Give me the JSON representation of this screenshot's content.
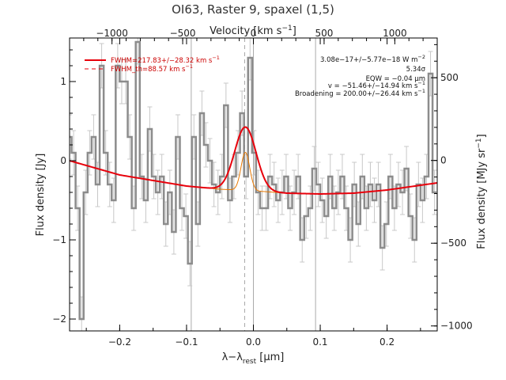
{
  "chart_data": {
    "type": "line",
    "title": "OI63, Raster 9, spaxel (1,5)",
    "xlabel": "λ−λ",
    "xlabel_sub": "rest",
    "xlabel_unit": " [μm]",
    "ylabel": "Flux density [Jy]",
    "ylabel_right": "Flux density [MJy sr",
    "ylabel_right_sup": "−1",
    "ylabel_right_end": "]",
    "xlabel_top": "Velocity [km s",
    "xlabel_top_sup": "−1",
    "xlabel_top_end": "]",
    "xlim": [
      -0.275,
      0.275
    ],
    "ylim": [
      -2.15,
      1.55
    ],
    "vel_lim": [
      -1300,
      1300
    ],
    "right_lim": [
      -1030,
      740
    ],
    "xticks": [
      -0.2,
      -0.1,
      0.0,
      0.1,
      0.2
    ],
    "xtick_labels": [
      "−0.2",
      "−0.1",
      "0.0",
      "0.1",
      "0.2"
    ],
    "yticks": [
      -2,
      -1,
      0,
      1
    ],
    "ytick_labels": [
      "−2",
      "−1",
      "0",
      "1"
    ],
    "vticks": [
      -1000,
      -500,
      0,
      500,
      1000
    ],
    "vtick_labels": [
      "−1000",
      "−500",
      "0",
      "500",
      "1000"
    ],
    "rticks": [
      -1000,
      -500,
      0,
      500
    ],
    "rtick_labels": [
      "−1000",
      "−500",
      "0",
      "500"
    ],
    "vlines": [
      -0.093,
      0.0,
      0.093
    ],
    "dashed_vline": -0.013,
    "spectrum": {
      "x": [
        -0.275,
        -0.269,
        -0.263,
        -0.257,
        -0.251,
        -0.245,
        -0.239,
        -0.233,
        -0.227,
        -0.221,
        -0.215,
        -0.209,
        -0.203,
        -0.197,
        -0.191,
        -0.185,
        -0.179,
        -0.173,
        -0.167,
        -0.161,
        -0.155,
        -0.149,
        -0.143,
        -0.137,
        -0.131,
        -0.125,
        -0.119,
        -0.113,
        -0.107,
        -0.101,
        -0.095,
        -0.089,
        -0.083,
        -0.077,
        -0.071,
        -0.065,
        -0.059,
        -0.053,
        -0.047,
        -0.041,
        -0.035,
        -0.029,
        -0.023,
        -0.017,
        -0.011,
        -0.005,
        0.001,
        0.007,
        0.013,
        0.019,
        0.025,
        0.031,
        0.037,
        0.043,
        0.049,
        0.055,
        0.061,
        0.067,
        0.073,
        0.079,
        0.085,
        0.091,
        0.097,
        0.103,
        0.109,
        0.115,
        0.121,
        0.127,
        0.133,
        0.139,
        0.145,
        0.151,
        0.157,
        0.163,
        0.169,
        0.175,
        0.181,
        0.187,
        0.193,
        0.199,
        0.205,
        0.211,
        0.217,
        0.223,
        0.229,
        0.235,
        0.241,
        0.247,
        0.253,
        0.259,
        0.265,
        0.271
      ],
      "y": [
        0.3,
        0.1,
        -0.6,
        -2.0,
        -0.4,
        0.1,
        0.3,
        -0.3,
        1.2,
        0.1,
        -0.3,
        -0.5,
        1.2,
        1.0,
        1.0,
        0.3,
        -0.6,
        1.5,
        -0.2,
        -0.5,
        0.4,
        -0.2,
        -0.4,
        -0.2,
        -0.8,
        -0.4,
        -0.9,
        0.3,
        -0.6,
        -0.7,
        -1.3,
        0.3,
        -0.8,
        0.6,
        0.2,
        0.0,
        -0.3,
        -0.4,
        -0.2,
        0.7,
        -0.5,
        -0.2,
        0.1,
        0.6,
        -0.2,
        1.3,
        0.1,
        -0.4,
        -0.6,
        -0.6,
        -0.2,
        -0.3,
        -0.5,
        -0.4,
        -0.2,
        -0.6,
        -0.4,
        -0.2,
        -1.0,
        -0.7,
        -0.6,
        -0.1,
        -0.3,
        -0.5,
        -0.7,
        -0.2,
        -0.6,
        -0.4,
        -0.2,
        -0.6,
        -1.0,
        -0.3,
        -0.8,
        -0.2,
        -0.6,
        -0.3,
        -0.5,
        -0.3,
        -1.1,
        -0.8,
        -0.2,
        -0.6,
        -0.3,
        -0.4,
        -0.1,
        -0.7,
        -1.0,
        -0.3,
        -0.5,
        -0.2,
        1.1,
        -0.4
      ],
      "err": 0.28
    },
    "fit": {
      "baseline_x": [
        -0.275,
        -0.2,
        -0.1,
        -0.05,
        0.0,
        0.05,
        0.1,
        0.15,
        0.2,
        0.275
      ],
      "baseline_y": [
        0.0,
        -0.18,
        -0.32,
        -0.36,
        -0.38,
        -0.41,
        -0.42,
        -0.41,
        -0.37,
        -0.28
      ],
      "center": -0.012,
      "amplitude": 0.8,
      "sigma": 0.016,
      "instr_sigma": 0.0065,
      "instr_amplitude": 0.48
    },
    "legend": [
      {
        "label": "FWHM=217.83+/−28.32 km s",
        "sup": "−1",
        "style": "solid"
      },
      {
        "label": "FWHM_th=88.57 km s",
        "sup": "−1",
        "style": "dashed"
      }
    ],
    "annotations": [
      {
        "text": "3.08e−17+/−5.77e−18 W m",
        "sup": "−2"
      },
      {
        "text": "5.34σ",
        "sup": ""
      },
      {
        "text": "EQW = −0.04 μm",
        "sup": ""
      },
      {
        "text": "v = −51.46+/−14.94 km s",
        "sup": "−1"
      },
      {
        "text": "Broadening = 200.00+/−26.44 km s",
        "sup": "−1"
      }
    ],
    "colors": {
      "spectrum": "#8c8c8c",
      "errorbar": "#c8c8c8",
      "fit": "#e8000b",
      "component": "#e87800",
      "vline": "#aaaaaa",
      "axis": "#000000"
    }
  }
}
